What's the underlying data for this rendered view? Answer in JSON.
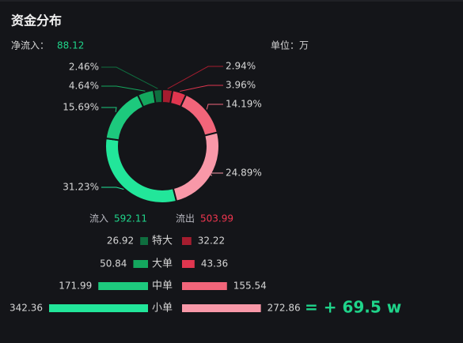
{
  "header": {
    "title": "资金分布",
    "net_label": "净流入：",
    "net_value": "88.12",
    "unit": "单位：万"
  },
  "donut": {
    "values": [
      2.94,
      3.96,
      14.19,
      24.89,
      31.23,
      15.69,
      4.64,
      2.46
    ],
    "value_labels": [
      "2.94%",
      "3.96%",
      "14.19%",
      "24.89%",
      "31.23%",
      "15.69%",
      "4.64%",
      "2.46%"
    ],
    "colors": [
      "#a51d2f",
      "#e0364f",
      "#f2657a",
      "#f898a8",
      "#22e69a",
      "#1dc97d",
      "#14a75e",
      "#0f6e3f"
    ]
  },
  "summary": {
    "inflow_label": "流入",
    "inflow": "592.11",
    "outflow_label": "流出",
    "outflow": "503.99"
  },
  "rows": [
    {
      "label": "特大",
      "inflow": 26.92,
      "outflow": 32.22,
      "inflow_color": "#0f6e3f",
      "outflow_color": "#a51d2f"
    },
    {
      "label": "大单",
      "inflow": 50.84,
      "outflow": 43.36,
      "inflow_color": "#14a75e",
      "outflow_color": "#e0364f"
    },
    {
      "label": "中单",
      "inflow": 171.99,
      "outflow": 155.54,
      "inflow_color": "#1dc97d",
      "outflow_color": "#f2657a"
    },
    {
      "label": "小单",
      "inflow": 342.36,
      "outflow": 272.86,
      "inflow_color": "#22e69a",
      "outflow_color": "#f898a8"
    }
  ],
  "total": "= + 69.5 w"
}
